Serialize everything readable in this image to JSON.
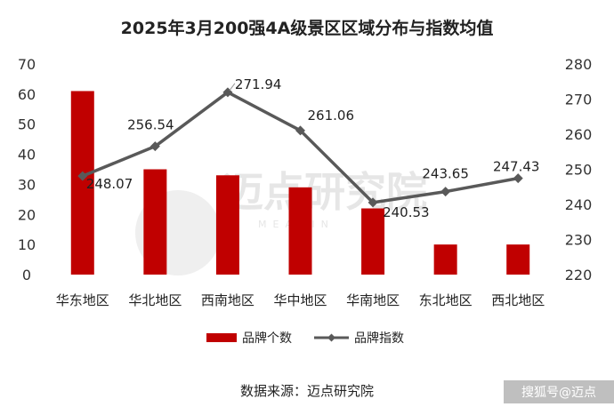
{
  "chart_data": {
    "type": "bar",
    "title": "2025年3月200强4A级景区区域分布与指数均值",
    "categories": [
      "华东地区",
      "华北地区",
      "西南地区",
      "华中地区",
      "华南地区",
      "东北地区",
      "西北地区"
    ],
    "series": [
      {
        "name": "品牌个数",
        "type": "bar",
        "axis": "left",
        "color": "#c00000",
        "values": [
          61,
          35,
          33,
          29,
          22,
          10,
          10
        ]
      },
      {
        "name": "品牌指数",
        "type": "line",
        "axis": "right",
        "color": "#595959",
        "values": [
          248.07,
          256.54,
          271.94,
          261.06,
          240.53,
          243.65,
          247.43
        ]
      }
    ],
    "y_left": {
      "min": 0,
      "max": 70,
      "ticks": [
        "0",
        "10",
        "20",
        "30",
        "40",
        "50",
        "60",
        "70"
      ]
    },
    "y_right": {
      "min": 220,
      "max": 280,
      "ticks": [
        "220",
        "230",
        "240",
        "250",
        "260",
        "270",
        "280"
      ]
    },
    "data_labels": [
      "248.07",
      "256.54",
      "271.94",
      "261.06",
      "240.53",
      "243.65",
      "247.43"
    ],
    "legend_position": "bottom",
    "grid": false
  },
  "footer": {
    "source": "数据来源：迈点研究院",
    "brand": "搜狐号@迈点"
  },
  "watermark": {
    "text": "迈点研究院",
    "sub": "MEADIN"
  }
}
